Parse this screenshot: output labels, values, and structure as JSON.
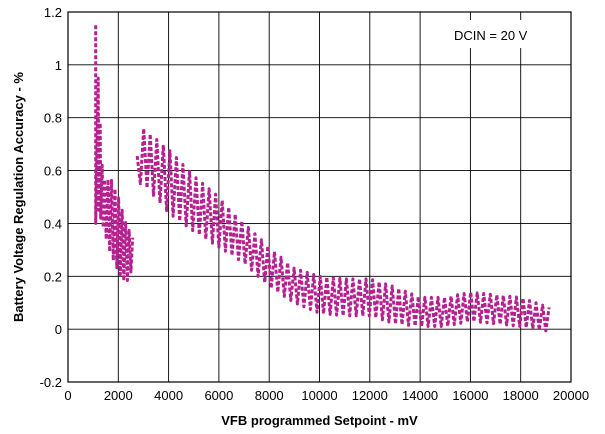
{
  "chart_data": {
    "type": "line",
    "xlabel": "VFB programmed Setpoint - mV",
    "ylabel": "Battery Voltage Regulation Accuracy - %",
    "xlim": [
      0,
      20000
    ],
    "ylim": [
      -0.2,
      1.2
    ],
    "xticks": [
      "0",
      "2000",
      "4000",
      "6000",
      "8000",
      "10000",
      "12000",
      "14000",
      "16000",
      "18000",
      "20000"
    ],
    "yticks": [
      "-0.2",
      "0",
      "0.2",
      "0.4",
      "0.6",
      "0.8",
      "1",
      "1.2"
    ],
    "grid": true,
    "annotation": "DCIN = 20 V",
    "series": [
      {
        "line_style": "dashed",
        "color": "#b5218f",
        "envelope": [
          {
            "x": 1100,
            "upper": 1.15,
            "lower": 0.4
          },
          {
            "x": 1400,
            "upper": 0.56,
            "lower": 0.38
          },
          {
            "x": 1700,
            "upper": 0.57,
            "lower": 0.28
          },
          {
            "x": 2000,
            "upper": 0.5,
            "lower": 0.22
          },
          {
            "x": 2300,
            "upper": 0.4,
            "lower": 0.17
          },
          {
            "x": 2600,
            "upper": 0.34,
            "lower": 0.24
          },
          {
            "x": 2800,
            "upper": 0.76,
            "lower": 0.55
          },
          {
            "x": 3000,
            "upper": 0.76,
            "lower": 0.55
          },
          {
            "x": 4000,
            "upper": 0.68,
            "lower": 0.44
          },
          {
            "x": 5000,
            "upper": 0.58,
            "lower": 0.37
          },
          {
            "x": 6000,
            "upper": 0.5,
            "lower": 0.31
          },
          {
            "x": 7000,
            "upper": 0.4,
            "lower": 0.25
          },
          {
            "x": 8000,
            "upper": 0.31,
            "lower": 0.16
          },
          {
            "x": 9000,
            "upper": 0.23,
            "lower": 0.1
          },
          {
            "x": 10000,
            "upper": 0.2,
            "lower": 0.06
          },
          {
            "x": 11000,
            "upper": 0.19,
            "lower": 0.05
          },
          {
            "x": 12000,
            "upper": 0.19,
            "lower": 0.05
          },
          {
            "x": 13000,
            "upper": 0.16,
            "lower": 0.02
          },
          {
            "x": 14000,
            "upper": 0.12,
            "lower": 0.01
          },
          {
            "x": 15000,
            "upper": 0.12,
            "lower": 0.01
          },
          {
            "x": 16000,
            "upper": 0.14,
            "lower": 0.03
          },
          {
            "x": 17000,
            "upper": 0.13,
            "lower": 0.02
          },
          {
            "x": 18000,
            "upper": 0.12,
            "lower": 0.01
          },
          {
            "x": 19200,
            "upper": 0.08,
            "lower": -0.01
          }
        ]
      }
    ]
  }
}
